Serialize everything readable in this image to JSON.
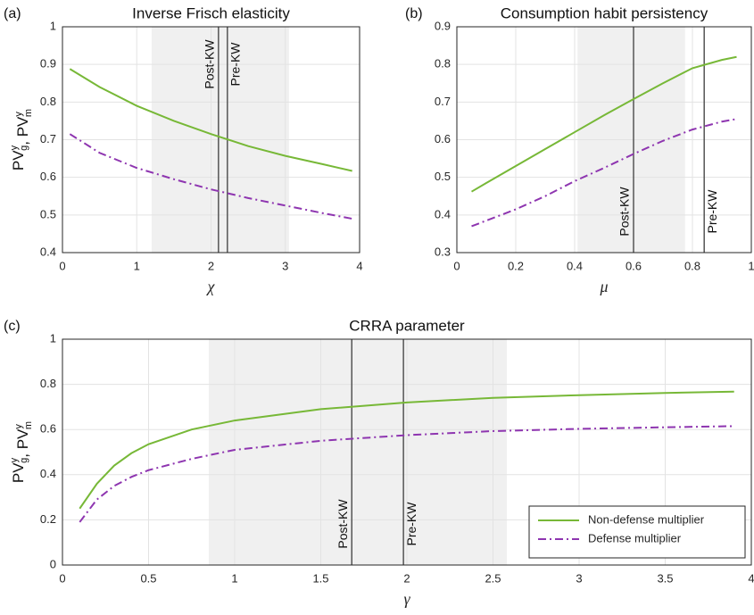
{
  "chart_data": [
    {
      "type": "line",
      "panel": "(a)",
      "title": "Inverse Frisch elasticity",
      "xlabel": "χ",
      "ylabel": {
        "parts": [
          {
            "base": "PV",
            "sup": "y",
            "sub": "g"
          },
          {
            "base": "PV",
            "sup": "y",
            "sub": "m"
          }
        ],
        "separator": ", "
      },
      "xlim": [
        0,
        4
      ],
      "xticks": [
        0,
        1,
        2,
        3,
        4
      ],
      "ylim": [
        0.4,
        1
      ],
      "yticks": [
        0.4,
        0.5,
        0.6,
        0.7,
        0.8,
        0.9,
        1
      ],
      "grid": true,
      "shade": [
        1.2,
        3.05
      ],
      "vline_label_position": "top",
      "vlines": [
        {
          "x": 2.1,
          "label": "Post-KW"
        },
        {
          "x": 2.22,
          "label": "Pre-KW"
        }
      ],
      "x": [
        0.1,
        0.5,
        1,
        1.5,
        2,
        2.5,
        3,
        3.5,
        3.9
      ],
      "series": [
        {
          "color": "#77b837",
          "style": "solid",
          "values": [
            0.888,
            0.84,
            0.79,
            0.75,
            0.715,
            0.683,
            0.657,
            0.635,
            0.617
          ]
        },
        {
          "color": "#8e35b0",
          "style": "dashdot",
          "values": [
            0.715,
            0.665,
            0.625,
            0.595,
            0.568,
            0.545,
            0.525,
            0.505,
            0.49
          ]
        }
      ]
    },
    {
      "type": "line",
      "panel": "(b)",
      "title": "Consumption habit persistency",
      "xlabel": "μ",
      "xlim": [
        0,
        1
      ],
      "xticks": [
        0,
        0.2,
        0.4,
        0.6,
        0.8,
        1
      ],
      "ylim": [
        0.3,
        0.9
      ],
      "yticks": [
        0.3,
        0.4,
        0.5,
        0.6,
        0.7,
        0.8,
        0.9
      ],
      "grid": true,
      "shade": [
        0.41,
        0.775
      ],
      "vline_label_position": "bottom",
      "vlines": [
        {
          "x": 0.6,
          "label": "Post-KW"
        },
        {
          "x": 0.84,
          "label": "Pre-KW"
        }
      ],
      "x": [
        0.05,
        0.1,
        0.2,
        0.3,
        0.4,
        0.5,
        0.6,
        0.7,
        0.8,
        0.9,
        0.95
      ],
      "series": [
        {
          "color": "#77b837",
          "style": "solid",
          "values": [
            0.462,
            0.485,
            0.53,
            0.575,
            0.62,
            0.665,
            0.708,
            0.75,
            0.79,
            0.812,
            0.82
          ]
        },
        {
          "color": "#8e35b0",
          "style": "dashdot",
          "values": [
            0.37,
            0.385,
            0.415,
            0.45,
            0.49,
            0.525,
            0.562,
            0.597,
            0.627,
            0.648,
            0.655
          ]
        }
      ]
    },
    {
      "type": "line",
      "panel": "(c)",
      "title": "CRRA parameter",
      "xlabel": "γ",
      "ylabel": {
        "parts": [
          {
            "base": "PV",
            "sup": "y",
            "sub": "g"
          },
          {
            "base": "PV",
            "sup": "y",
            "sub": "m"
          }
        ],
        "separator": ", "
      },
      "xlim": [
        0,
        4
      ],
      "xticks": [
        0,
        0.5,
        1,
        1.5,
        2,
        2.5,
        3,
        3.5,
        4
      ],
      "ylim": [
        0,
        1
      ],
      "yticks": [
        0,
        0.2,
        0.4,
        0.6,
        0.8,
        1
      ],
      "grid": true,
      "shade": [
        0.85,
        2.58
      ],
      "vline_label_position": "bottom",
      "vlines": [
        {
          "x": 1.68,
          "label": "Post-KW"
        },
        {
          "x": 1.98,
          "label": "Pre-KW"
        }
      ],
      "legend": "lower right",
      "x": [
        0.1,
        0.2,
        0.3,
        0.4,
        0.5,
        0.75,
        1,
        1.5,
        2,
        2.5,
        3,
        3.5,
        3.9
      ],
      "series": [
        {
          "name": "Non-defense multiplier",
          "color": "#77b837",
          "style": "solid",
          "values": [
            0.25,
            0.36,
            0.44,
            0.495,
            0.535,
            0.6,
            0.64,
            0.69,
            0.72,
            0.74,
            0.752,
            0.762,
            0.768
          ]
        },
        {
          "name": "Defense multiplier",
          "color": "#8e35b0",
          "style": "dashdot",
          "values": [
            0.19,
            0.29,
            0.35,
            0.39,
            0.42,
            0.47,
            0.51,
            0.55,
            0.575,
            0.593,
            0.603,
            0.61,
            0.615
          ]
        }
      ]
    }
  ]
}
